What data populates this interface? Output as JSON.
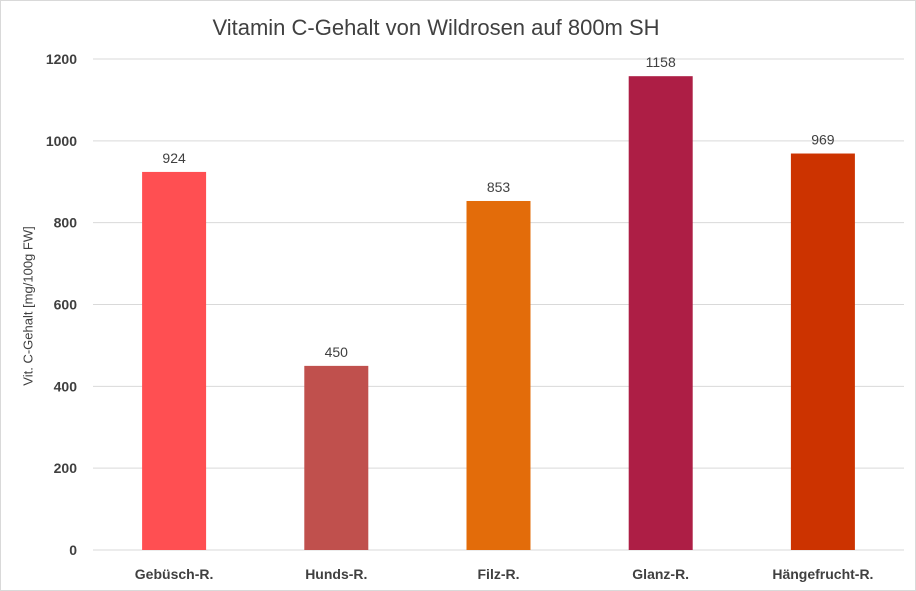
{
  "chart_data": {
    "type": "bar",
    "title": "Vitamin C-Gehalt von Wildrosen auf 800m SH",
    "xlabel": "",
    "ylabel": "Vit. C-Gehalt [mg/100g FW]",
    "categories": [
      "Gebüsch-R.",
      "Hunds-R.",
      "Filz-R.",
      "Glanz-R.",
      "Hängefrucht-R."
    ],
    "values": [
      924,
      450,
      853,
      1158,
      969
    ],
    "bar_colors": [
      "#ff4f52",
      "#c0504d",
      "#e36c0a",
      "#ad1e45",
      "#cc3300"
    ],
    "ylim": [
      0,
      1200
    ],
    "yticks": [
      0,
      200,
      400,
      600,
      800,
      1000,
      1200
    ],
    "grid": true,
    "data_labels": true,
    "legend": "none",
    "grid_color": "#d9d9d9"
  }
}
